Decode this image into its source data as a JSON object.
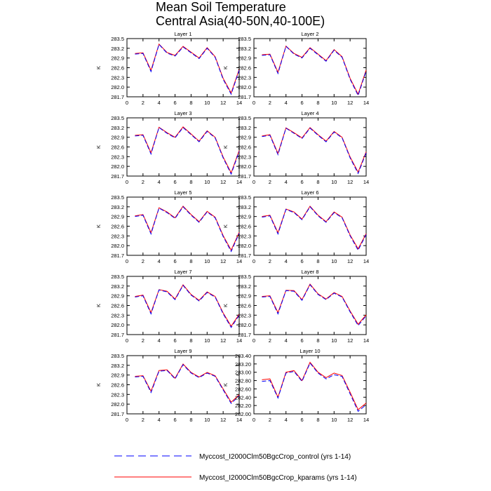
{
  "title_lines": [
    "Mean Soil Temperature",
    "Central Asia(40-50N,40-100E)"
  ],
  "ylabel": "K",
  "legend": [
    {
      "label": "Myccost_I2000Clm50BgcCrop_control (yrs 1-14)",
      "color": "#0000ff",
      "style": "dashed"
    },
    {
      "label": "Myccost_I2000Clm50BgcCrop_kparams (yrs 1-14)",
      "color": "#ff0000",
      "style": "solid"
    }
  ],
  "chart_data": [
    {
      "type": "line",
      "title": "Layer 1",
      "ylabel": "K",
      "x": [
        1,
        2,
        3,
        4,
        5,
        6,
        7,
        8,
        9,
        10,
        11,
        12,
        13,
        14
      ],
      "xlim": [
        0,
        14
      ],
      "xticks": [
        0,
        2,
        4,
        6,
        8,
        10,
        12,
        14
      ],
      "ylim": [
        281.7,
        283.5
      ],
      "yticks": [
        "283.5",
        "283.2",
        "282.9",
        "282.6",
        "282.3",
        "282.0",
        "281.7"
      ],
      "series": [
        {
          "name": "Myccost_I2000Clm50BgcCrop_control (yrs 1-14)",
          "color": "#0000ff",
          "values": [
            283.02,
            283.04,
            282.48,
            283.32,
            283.05,
            282.96,
            283.24,
            283.06,
            282.88,
            283.2,
            282.92,
            282.24,
            281.78,
            282.52
          ]
        },
        {
          "name": "Myccost_I2000Clm50BgcCrop_kparams (yrs 1-14)",
          "color": "#ff0000",
          "values": [
            283.04,
            283.06,
            282.52,
            283.33,
            283.07,
            282.98,
            283.26,
            283.08,
            282.9,
            283.22,
            282.94,
            282.27,
            281.82,
            282.55
          ]
        }
      ]
    },
    {
      "type": "line",
      "title": "Layer 2",
      "ylabel": "K",
      "x": [
        1,
        2,
        3,
        4,
        5,
        6,
        7,
        8,
        9,
        10,
        11,
        12,
        13,
        14
      ],
      "xlim": [
        0,
        14
      ],
      "xticks": [
        0,
        2,
        4,
        6,
        8,
        10,
        12,
        14
      ],
      "ylim": [
        281.7,
        283.5
      ],
      "yticks": [
        "283.5",
        "283.2",
        "282.9",
        "282.6",
        "282.3",
        "282.0",
        "281.7"
      ],
      "series": [
        {
          "name": "Myccost_I2000Clm50BgcCrop_control (yrs 1-14)",
          "color": "#0000ff",
          "values": [
            282.98,
            283.0,
            282.42,
            283.26,
            283.02,
            282.9,
            283.2,
            283.0,
            282.8,
            283.14,
            282.92,
            282.24,
            281.74,
            282.5
          ]
        },
        {
          "name": "Myccost_I2000Clm50BgcCrop_kparams (yrs 1-14)",
          "color": "#ff0000",
          "values": [
            283.0,
            283.02,
            282.46,
            283.27,
            283.04,
            282.92,
            283.22,
            283.02,
            282.82,
            283.16,
            282.94,
            282.27,
            281.78,
            282.53
          ]
        }
      ]
    },
    {
      "type": "line",
      "title": "Layer 3",
      "ylabel": "K",
      "x": [
        1,
        2,
        3,
        4,
        5,
        6,
        7,
        8,
        9,
        10,
        11,
        12,
        13,
        14
      ],
      "xlim": [
        0,
        14
      ],
      "xticks": [
        0,
        2,
        4,
        6,
        8,
        10,
        12,
        14
      ],
      "ylim": [
        281.7,
        283.5
      ],
      "yticks": [
        "283.5",
        "283.2",
        "282.9",
        "282.6",
        "282.3",
        "282.0",
        "281.7"
      ],
      "series": [
        {
          "name": "Myccost_I2000Clm50BgcCrop_control (yrs 1-14)",
          "color": "#0000ff",
          "values": [
            282.94,
            282.96,
            282.38,
            283.2,
            283.02,
            282.88,
            283.2,
            282.98,
            282.76,
            283.08,
            282.88,
            282.26,
            281.76,
            282.46
          ]
        },
        {
          "name": "Myccost_I2000Clm50BgcCrop_kparams (yrs 1-14)",
          "color": "#ff0000",
          "values": [
            282.96,
            282.98,
            282.42,
            283.21,
            283.04,
            282.9,
            283.22,
            283.0,
            282.78,
            283.1,
            282.9,
            282.29,
            281.8,
            282.49
          ]
        }
      ]
    },
    {
      "type": "line",
      "title": "Layer 4",
      "ylabel": "K",
      "x": [
        1,
        2,
        3,
        4,
        5,
        6,
        7,
        8,
        9,
        10,
        11,
        12,
        13,
        14
      ],
      "xlim": [
        0,
        14
      ],
      "xticks": [
        0,
        2,
        4,
        6,
        8,
        10,
        12,
        14
      ],
      "ylim": [
        281.7,
        283.5
      ],
      "yticks": [
        "283.5",
        "283.2",
        "282.9",
        "282.6",
        "282.3",
        "282.0",
        "281.7"
      ],
      "series": [
        {
          "name": "Myccost_I2000Clm50BgcCrop_control (yrs 1-14)",
          "color": "#0000ff",
          "values": [
            282.92,
            282.96,
            282.36,
            283.18,
            283.02,
            282.86,
            283.18,
            282.96,
            282.76,
            283.06,
            282.88,
            282.26,
            281.78,
            282.42
          ]
        },
        {
          "name": "Myccost_I2000Clm50BgcCrop_kparams (yrs 1-14)",
          "color": "#ff0000",
          "values": [
            282.94,
            282.98,
            282.4,
            283.19,
            283.04,
            282.88,
            283.2,
            282.98,
            282.78,
            283.08,
            282.9,
            282.29,
            281.82,
            282.45
          ]
        }
      ]
    },
    {
      "type": "line",
      "title": "Layer 5",
      "ylabel": "K",
      "x": [
        1,
        2,
        3,
        4,
        5,
        6,
        7,
        8,
        9,
        10,
        11,
        12,
        13,
        14
      ],
      "xlim": [
        0,
        14
      ],
      "xticks": [
        0,
        2,
        4,
        6,
        8,
        10,
        12,
        14
      ],
      "ylim": [
        281.7,
        283.5
      ],
      "yticks": [
        "283.5",
        "283.2",
        "282.9",
        "282.6",
        "282.3",
        "282.0",
        "281.7"
      ],
      "series": [
        {
          "name": "Myccost_I2000Clm50BgcCrop_control (yrs 1-14)",
          "color": "#0000ff",
          "values": [
            282.9,
            282.94,
            282.36,
            283.16,
            283.02,
            282.84,
            283.2,
            282.94,
            282.72,
            283.04,
            282.86,
            282.28,
            281.82,
            282.38
          ]
        },
        {
          "name": "Myccost_I2000Clm50BgcCrop_kparams (yrs 1-14)",
          "color": "#ff0000",
          "values": [
            282.92,
            282.96,
            282.4,
            283.17,
            283.04,
            282.86,
            283.22,
            282.96,
            282.74,
            283.06,
            282.88,
            282.31,
            281.86,
            282.41
          ]
        }
      ]
    },
    {
      "type": "line",
      "title": "Layer 6",
      "ylabel": "K",
      "x": [
        1,
        2,
        3,
        4,
        5,
        6,
        7,
        8,
        9,
        10,
        11,
        12,
        13,
        14
      ],
      "xlim": [
        0,
        14
      ],
      "xticks": [
        0,
        2,
        4,
        6,
        8,
        10,
        12,
        14
      ],
      "ylim": [
        281.7,
        283.5
      ],
      "yticks": [
        "283.5",
        "283.2",
        "282.9",
        "282.6",
        "282.3",
        "282.0",
        "281.7"
      ],
      "series": [
        {
          "name": "Myccost_I2000Clm50BgcCrop_control (yrs 1-14)",
          "color": "#0000ff",
          "values": [
            282.88,
            282.92,
            282.36,
            283.12,
            283.02,
            282.8,
            283.2,
            282.92,
            282.72,
            283.02,
            282.86,
            282.3,
            281.86,
            282.34
          ]
        },
        {
          "name": "Myccost_I2000Clm50BgcCrop_kparams (yrs 1-14)",
          "color": "#ff0000",
          "values": [
            282.9,
            282.94,
            282.4,
            283.13,
            283.04,
            282.82,
            283.22,
            282.94,
            282.74,
            283.04,
            282.88,
            282.33,
            281.9,
            282.37
          ]
        }
      ]
    },
    {
      "type": "line",
      "title": "Layer 7",
      "ylabel": "K",
      "x": [
        1,
        2,
        3,
        4,
        5,
        6,
        7,
        8,
        9,
        10,
        11,
        12,
        13,
        14
      ],
      "xlim": [
        0,
        14
      ],
      "xticks": [
        0,
        2,
        4,
        6,
        8,
        10,
        12,
        14
      ],
      "ylim": [
        281.7,
        283.5
      ],
      "yticks": [
        "283.5",
        "283.2",
        "282.9",
        "282.6",
        "282.3",
        "282.0",
        "281.7"
      ],
      "series": [
        {
          "name": "Myccost_I2000Clm50BgcCrop_control (yrs 1-14)",
          "color": "#0000ff",
          "values": [
            282.86,
            282.9,
            282.34,
            283.08,
            283.02,
            282.78,
            283.22,
            282.92,
            282.74,
            283.0,
            282.86,
            282.34,
            281.92,
            282.3
          ]
        },
        {
          "name": "Myccost_I2000Clm50BgcCrop_kparams (yrs 1-14)",
          "color": "#ff0000",
          "values": [
            282.88,
            282.92,
            282.38,
            283.09,
            283.04,
            282.8,
            283.24,
            282.94,
            282.76,
            283.02,
            282.88,
            282.37,
            281.96,
            282.33
          ]
        }
      ]
    },
    {
      "type": "line",
      "title": "Layer 8",
      "ylabel": "K",
      "x": [
        1,
        2,
        3,
        4,
        5,
        6,
        7,
        8,
        9,
        10,
        11,
        12,
        13,
        14
      ],
      "xlim": [
        0,
        14
      ],
      "xticks": [
        0,
        2,
        4,
        6,
        8,
        10,
        12,
        14
      ],
      "ylim": [
        281.7,
        283.5
      ],
      "yticks": [
        "283.5",
        "283.2",
        "282.9",
        "282.6",
        "282.3",
        "282.0",
        "281.7"
      ],
      "series": [
        {
          "name": "Myccost_I2000Clm50BgcCrop_control (yrs 1-14)",
          "color": "#0000ff",
          "values": [
            282.86,
            282.88,
            282.34,
            283.06,
            283.04,
            282.76,
            283.24,
            282.94,
            282.78,
            282.98,
            282.86,
            282.4,
            281.98,
            282.28
          ]
        },
        {
          "name": "Myccost_I2000Clm50BgcCrop_kparams (yrs 1-14)",
          "color": "#ff0000",
          "values": [
            282.88,
            282.9,
            282.38,
            283.07,
            283.06,
            282.78,
            283.26,
            282.96,
            282.8,
            283.0,
            282.88,
            282.43,
            282.02,
            282.31
          ]
        }
      ]
    },
    {
      "type": "line",
      "title": "Layer 9",
      "ylabel": "K",
      "x": [
        1,
        2,
        3,
        4,
        5,
        6,
        7,
        8,
        9,
        10,
        11,
        12,
        13,
        14
      ],
      "xlim": [
        0,
        14
      ],
      "xticks": [
        0,
        2,
        4,
        6,
        8,
        10,
        12,
        14
      ],
      "ylim": [
        281.7,
        283.5
      ],
      "yticks": [
        "283.5",
        "283.2",
        "282.9",
        "282.6",
        "282.3",
        "282.0",
        "281.7"
      ],
      "series": [
        {
          "name": "Myccost_I2000Clm50BgcCrop_control (yrs 1-14)",
          "color": "#0000ff",
          "values": [
            282.84,
            282.86,
            282.36,
            283.02,
            283.04,
            282.78,
            283.22,
            282.96,
            282.82,
            282.96,
            282.86,
            282.44,
            282.02,
            282.26
          ]
        },
        {
          "name": "Myccost_I2000Clm50BgcCrop_kparams (yrs 1-14)",
          "color": "#ff0000",
          "values": [
            282.86,
            282.88,
            282.4,
            283.04,
            283.06,
            282.8,
            283.24,
            282.98,
            282.84,
            282.98,
            282.88,
            282.47,
            282.06,
            282.29
          ]
        }
      ]
    },
    {
      "type": "line",
      "title": "Layer 10",
      "ylabel": "K",
      "x": [
        1,
        2,
        3,
        4,
        5,
        6,
        7,
        8,
        9,
        10,
        11,
        12,
        13,
        14
      ],
      "xlim": [
        0,
        14
      ],
      "xticks": [
        0,
        2,
        4,
        6,
        8,
        10,
        12,
        14
      ],
      "ylim": [
        282.0,
        283.4
      ],
      "yticks": [
        "283.40",
        "283.20",
        "283.00",
        "282.80",
        "282.60",
        "282.40",
        "282.20",
        "282.00"
      ],
      "series": [
        {
          "name": "Myccost_I2000Clm50BgcCrop_control (yrs 1-14)",
          "color": "#0000ff",
          "values": [
            282.78,
            282.8,
            282.38,
            282.98,
            283.02,
            282.78,
            283.22,
            282.98,
            282.84,
            282.94,
            282.9,
            282.48,
            282.06,
            282.22
          ]
        },
        {
          "name": "Myccost_I2000Clm50BgcCrop_kparams (yrs 1-14)",
          "color": "#ff0000",
          "values": [
            282.82,
            282.84,
            282.4,
            283.0,
            283.04,
            282.8,
            283.24,
            283.0,
            282.87,
            282.98,
            282.92,
            282.52,
            282.1,
            282.26
          ]
        }
      ]
    }
  ]
}
